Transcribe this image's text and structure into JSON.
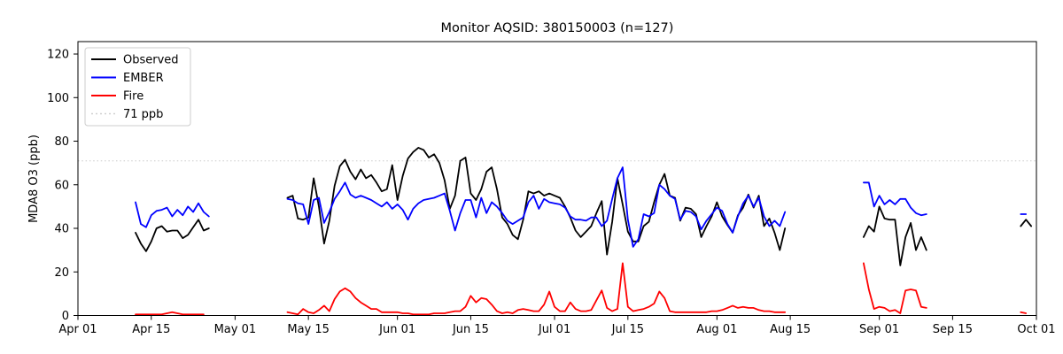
{
  "chart_data": {
    "type": "line",
    "title": "Monitor AQSID: 380150003 (n=127)",
    "xlabel": "",
    "ylabel": "MDA8 O3 (ppb)",
    "n_points": 127,
    "ylim": [
      0,
      125.7
    ],
    "xlim_days": [
      0,
      183
    ],
    "x_day0_date": "Apr 01",
    "grid": "off",
    "legend_position": "upper left",
    "yticks": [
      0,
      20,
      40,
      60,
      80,
      100,
      120
    ],
    "xticks": [
      {
        "day": 0,
        "label": "Apr 01"
      },
      {
        "day": 14,
        "label": "Apr 15"
      },
      {
        "day": 30,
        "label": "May 01"
      },
      {
        "day": 44,
        "label": "May 15"
      },
      {
        "day": 61,
        "label": "Jun 01"
      },
      {
        "day": 75,
        "label": "Jun 15"
      },
      {
        "day": 91,
        "label": "Jul 01"
      },
      {
        "day": 105,
        "label": "Jul 15"
      },
      {
        "day": 122,
        "label": "Aug 01"
      },
      {
        "day": 136,
        "label": "Aug 15"
      },
      {
        "day": 153,
        "label": "Sep 01"
      },
      {
        "day": 167,
        "label": "Sep 15"
      },
      {
        "day": 183,
        "label": "Oct 01"
      }
    ],
    "threshold": {
      "value": 71,
      "label": "71 ppb",
      "color": "#d8d8d8",
      "style": "dotted"
    },
    "legend_items": [
      {
        "label": "Observed",
        "color": "#000000",
        "dash": ""
      },
      {
        "label": "EMBER",
        "color": "#0000ff",
        "dash": ""
      },
      {
        "label": "Fire",
        "color": "#ff0000",
        "dash": ""
      },
      {
        "label": "71 ppb",
        "color": "#d0d0d0",
        "dash": "2 3"
      }
    ],
    "series": [
      {
        "name": "Observed",
        "color": "#000000",
        "segments": [
          {
            "start_day": 11,
            "values": [
              38,
              33,
              29.5,
              34,
              40,
              41,
              38.5,
              39,
              39,
              35.5,
              37,
              40.5,
              44,
              39,
              40
            ]
          },
          {
            "start_day": 40,
            "values": [
              54,
              55,
              44.5,
              44,
              45,
              63,
              50,
              33,
              43.5,
              59.5,
              68.5,
              71.5,
              66,
              62.5,
              67,
              63,
              64.5,
              61,
              57,
              58,
              69,
              53,
              64,
              72,
              75,
              77,
              76,
              72.5,
              74,
              70,
              62,
              49,
              55,
              71,
              72.5,
              56,
              53,
              58,
              66,
              68,
              58,
              45,
              42,
              37,
              35,
              44,
              57,
              56,
              57,
              55,
              56,
              55,
              54,
              50,
              45,
              39,
              36,
              38.5,
              41,
              47,
              52.5,
              28,
              43,
              63,
              51,
              38.5,
              34,
              34,
              41,
              43,
              52,
              60,
              65,
              55,
              54,
              43.5,
              49.5,
              49,
              46.5,
              36,
              41,
              45.5,
              52,
              45.5,
              41.5,
              38,
              46,
              49.5,
              55.5,
              49.5,
              55,
              41,
              44.5,
              38,
              30,
              40
            ]
          },
          {
            "start_day": 150,
            "values": [
              36,
              41,
              38.5,
              50,
              44.5,
              44,
              44,
              23,
              36,
              42.5,
              30,
              36,
              30
            ]
          },
          {
            "start_day": 180,
            "values": [
              41,
              44,
              41
            ]
          }
        ]
      },
      {
        "name": "EMBER",
        "color": "#0000ff",
        "segments": [
          {
            "start_day": 11,
            "values": [
              52,
              42,
              40.5,
              46,
              48,
              48.5,
              49.5,
              45.5,
              48.5,
              46,
              50,
              47.5,
              51.5,
              47.5,
              45.5
            ]
          },
          {
            "start_day": 40,
            "values": [
              53.5,
              53,
              51.5,
              51,
              42,
              53,
              54,
              42.5,
              47.5,
              53.5,
              57,
              61,
              55.5,
              54,
              55,
              54,
              53,
              51.5,
              50,
              52,
              49,
              51,
              48.5,
              44,
              49,
              51.5,
              53,
              53.5,
              54,
              55,
              56,
              48,
              39,
              47,
              53,
              53,
              45,
              54,
              47,
              52,
              50,
              47,
              43.5,
              42,
              43.5,
              45,
              52,
              55,
              49,
              53.5,
              52,
              51.5,
              51,
              49.5,
              45.5,
              44,
              44,
              43.5,
              45,
              45,
              41,
              43.5,
              53.5,
              63,
              68,
              44,
              31.5,
              35,
              46.5,
              45.5,
              47,
              60,
              58,
              55,
              53.5,
              44,
              48,
              47.5,
              45.5,
              39.5,
              43.5,
              46.5,
              49.5,
              48,
              42,
              38,
              45.5,
              51.5,
              55,
              50,
              54,
              45.5,
              41,
              43.5,
              41,
              47.5
            ]
          },
          {
            "start_day": 150,
            "values": [
              61,
              61,
              50,
              55,
              51,
              53,
              51,
              53.5,
              53.5,
              49.5,
              47,
              46,
              46.5
            ]
          },
          {
            "start_day": 180,
            "values": [
              46.5,
              46.5
            ]
          }
        ]
      },
      {
        "name": "Fire",
        "color": "#ff0000",
        "segments": [
          {
            "start_day": 11,
            "values": [
              0.5,
              0.5,
              0.5,
              0.5,
              0.5,
              0.5,
              1,
              1.5,
              1,
              0.5,
              0.5,
              0.5,
              0.5,
              0.5
            ]
          },
          {
            "start_day": 40,
            "values": [
              1.5,
              1,
              0.5,
              3,
              1.5,
              1,
              2.5,
              4.5,
              2,
              7.5,
              11,
              12.5,
              11,
              8,
              6,
              4.5,
              3,
              3,
              1.5,
              1.5,
              1.5,
              1.5,
              1,
              1,
              0.5,
              0.5,
              0.5,
              0.5,
              1,
              1,
              1,
              1.5,
              2,
              2,
              4,
              9,
              6,
              8,
              7.5,
              5,
              2,
              1,
              1.5,
              1,
              2.5,
              3,
              2.5,
              2,
              2,
              5,
              11,
              4,
              2,
              2,
              6,
              3,
              2,
              2,
              2.5,
              7,
              11.5,
              3.5,
              2,
              3,
              24,
              4,
              2,
              2.5,
              3,
              4,
              5.5,
              11,
              8,
              2,
              1.5,
              1.5,
              1.5,
              1.5,
              1.5,
              1.5,
              1.5,
              2,
              2,
              2.5,
              3.5,
              4.5,
              3.5,
              4,
              3.5,
              3.5,
              2.5,
              2,
              2,
              1.5,
              1.5,
              1.5
            ]
          },
          {
            "start_day": 150,
            "values": [
              24,
              12,
              3,
              4,
              3.5,
              2,
              2.5,
              1,
              11.5,
              12,
              11.5,
              4,
              3.5
            ]
          },
          {
            "start_day": 180,
            "values": [
              1.5,
              1
            ]
          }
        ]
      }
    ]
  }
}
